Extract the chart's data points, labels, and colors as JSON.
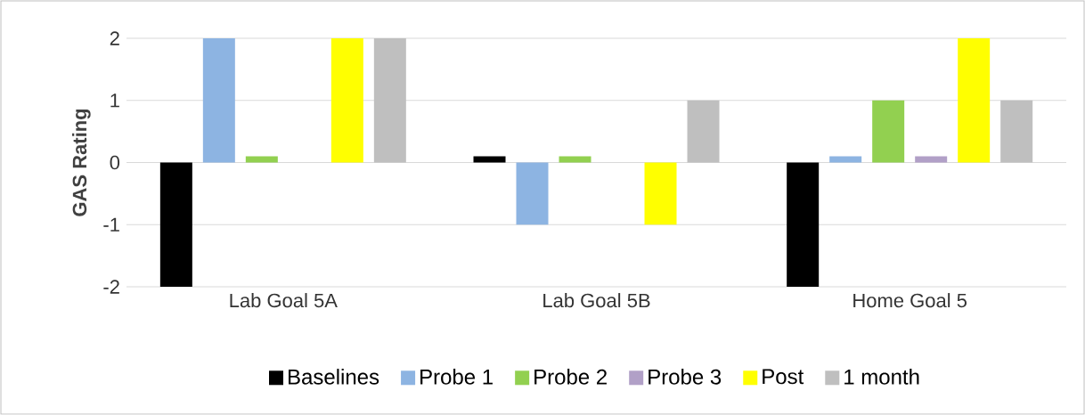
{
  "chart_data": {
    "type": "bar",
    "ylabel": "GAS Rating",
    "categories": [
      "Lab Goal 5A",
      "Lab Goal 5B",
      "Home Goal 5"
    ],
    "series": [
      {
        "name": "Baselines",
        "color": "#000000",
        "values": [
          -2,
          0.1,
          -2
        ]
      },
      {
        "name": "Probe 1",
        "color": "#8db4e2",
        "values": [
          2,
          -1,
          0.1
        ]
      },
      {
        "name": "Probe 2",
        "color": "#92d050",
        "values": [
          0.1,
          0.1,
          1
        ]
      },
      {
        "name": "Probe 3",
        "color": "#b1a0c7",
        "values": [
          null,
          null,
          0.1
        ]
      },
      {
        "name": "Post",
        "color": "#ffff00",
        "values": [
          2,
          -1,
          2
        ]
      },
      {
        "name": "1 month",
        "color": "#bfbfbf",
        "values": [
          2,
          1,
          1
        ]
      }
    ],
    "ylim": [
      -2,
      2
    ],
    "yticks": [
      -2,
      -1,
      0,
      1,
      2
    ],
    "grid": "y",
    "legend": "bottom"
  }
}
